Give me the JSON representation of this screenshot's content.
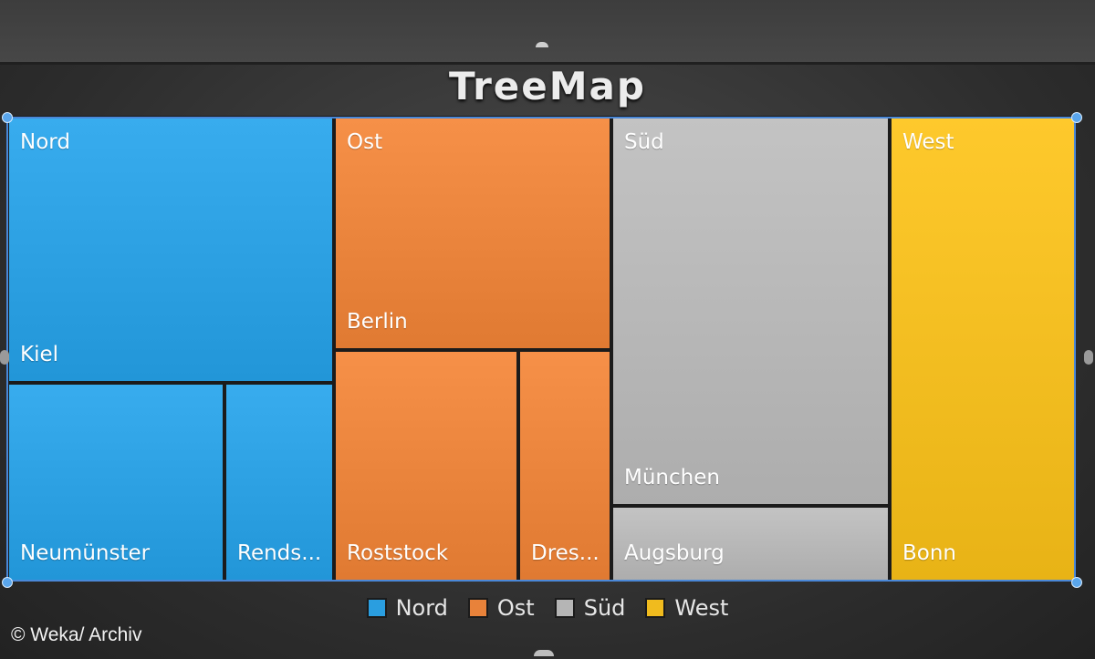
{
  "chart_data": {
    "type": "treemap",
    "title": "TreeMap",
    "groups": [
      {
        "name": "Nord",
        "color": "#2a9ee0",
        "children": [
          {
            "label": "Kiel"
          },
          {
            "label": "Neumünster"
          },
          {
            "label": "Rends..."
          }
        ]
      },
      {
        "name": "Ost",
        "color": "#e8823a",
        "children": [
          {
            "label": "Berlin"
          },
          {
            "label": "Roststock"
          },
          {
            "label": "Dres..."
          }
        ]
      },
      {
        "name": "Süd",
        "color": "#b5b5b5",
        "children": [
          {
            "label": "München"
          },
          {
            "label": "Augsburg"
          }
        ]
      },
      {
        "name": "West",
        "color": "#f0bb1e",
        "children": [
          {
            "label": "Bonn"
          }
        ]
      }
    ],
    "legend": [
      "Nord",
      "Ost",
      "Süd",
      "West"
    ],
    "legend_position": "bottom"
  },
  "credit": "© Weka/ Archiv"
}
